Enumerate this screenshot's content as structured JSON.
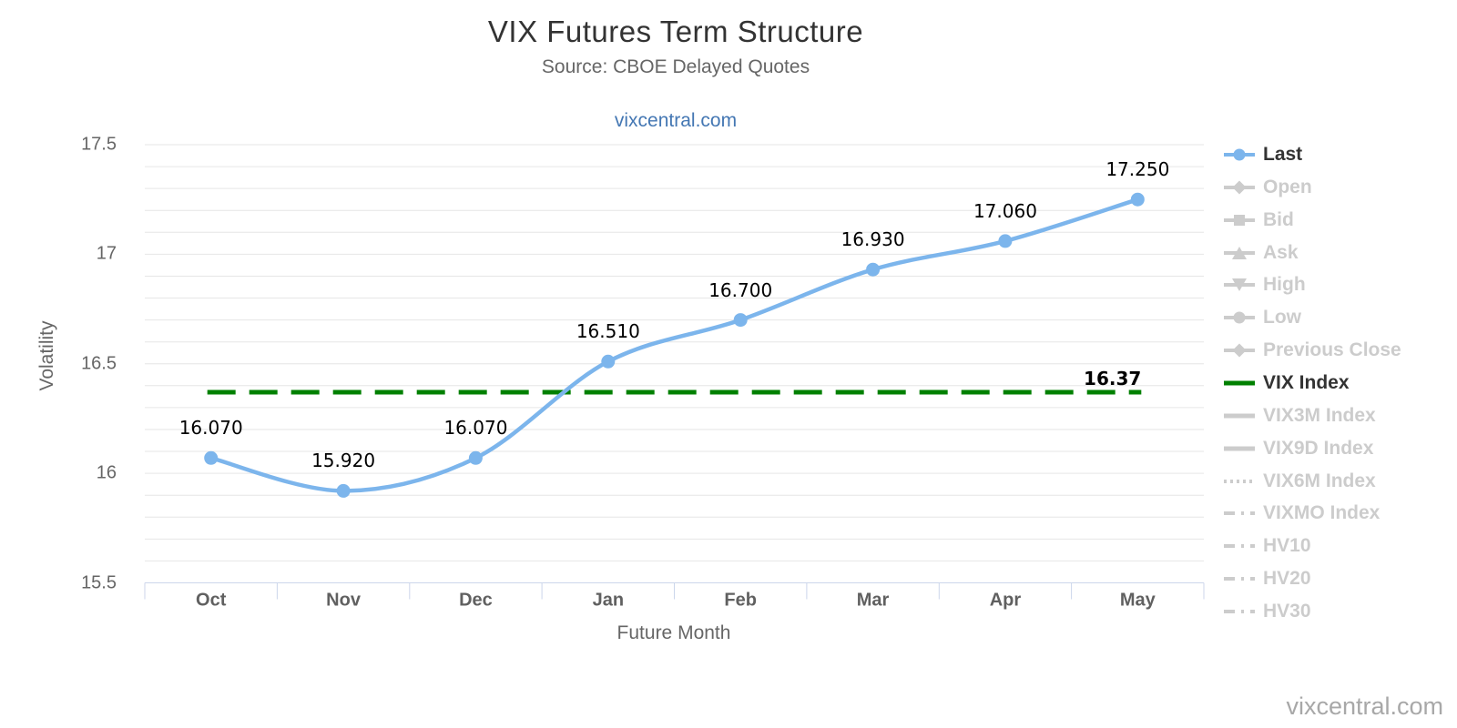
{
  "header": {
    "title": "VIX Futures Term Structure",
    "subtitle": "Source: CBOE Delayed Quotes",
    "link": "vixcentral.com"
  },
  "watermark": "vixcentral.com",
  "colors": {
    "last_series": "#7cb5ec",
    "vix_index_line": "#008000",
    "legend_active_text": "#333333",
    "legend_inactive": "#cccccc",
    "gridline": "#e6e6e6",
    "axis_line": "#ccd6eb",
    "y_axis_label": "#666666",
    "x_axis_label": "#606060",
    "data_label": "#000000",
    "link": "#4477b3",
    "watermark": "#a8a8a8"
  },
  "chart_data": {
    "type": "line",
    "title": "VIX Futures Term Structure",
    "subtitle": "Source: CBOE Delayed Quotes",
    "xlabel": "Future Month",
    "ylabel": "Volatility",
    "categories": [
      "Oct",
      "Nov",
      "Dec",
      "Jan",
      "Feb",
      "Mar",
      "Apr",
      "May"
    ],
    "ylim": [
      15.5,
      17.5
    ],
    "yticks": [
      "15.5",
      "16",
      "16.5",
      "17",
      "17.5"
    ],
    "minor_grid_interval": 0.1,
    "grid": true,
    "legend_position": "right",
    "series": [
      {
        "name": "Last",
        "values": [
          16.07,
          15.92,
          16.07,
          16.51,
          16.7,
          16.93,
          17.06,
          17.25
        ],
        "labels": [
          "16.070",
          "15.920",
          "16.070",
          "16.510",
          "16.700",
          "16.930",
          "17.060",
          "17.250"
        ],
        "color": "#7cb5ec",
        "marker": "circle"
      },
      {
        "name": "VIX Index",
        "style": "horizontal-dashed",
        "value": 16.37,
        "label": "16.37",
        "color": "#008000"
      }
    ],
    "legend": [
      {
        "label": "Last",
        "marker": "circle",
        "active": true,
        "color": "#7cb5ec"
      },
      {
        "label": "Open",
        "marker": "diamond",
        "active": false
      },
      {
        "label": "Bid",
        "marker": "square",
        "active": false
      },
      {
        "label": "Ask",
        "marker": "triangle-up",
        "active": false
      },
      {
        "label": "High",
        "marker": "triangle-down",
        "active": false
      },
      {
        "label": "Low",
        "marker": "circle-gray",
        "active": false
      },
      {
        "label": "Previous Close",
        "marker": "diamond",
        "active": false
      },
      {
        "label": "VIX Index",
        "marker": "solid-line",
        "active": true,
        "color": "#008000"
      },
      {
        "label": "VIX3M Index",
        "marker": "solid-line",
        "active": false
      },
      {
        "label": "VIX9D Index",
        "marker": "solid-line",
        "active": false
      },
      {
        "label": "VIX6M Index",
        "marker": "dotted-line",
        "active": false
      },
      {
        "label": "VIXMO Index",
        "marker": "dashdot-line",
        "active": false
      },
      {
        "label": "HV10",
        "marker": "dashdot-line",
        "active": false
      },
      {
        "label": "HV20",
        "marker": "dashdot-line",
        "active": false
      },
      {
        "label": "HV30",
        "marker": "dashdot-line",
        "active": false
      }
    ]
  }
}
